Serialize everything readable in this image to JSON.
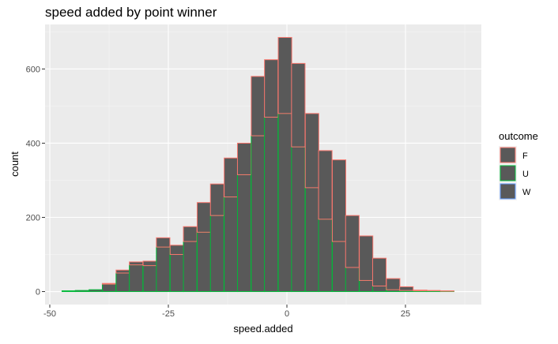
{
  "chart_data": {
    "type": "bar",
    "subtype": "stacked-histogram",
    "title": "speed added by point winner",
    "xlabel": "speed.added",
    "ylabel": "count",
    "xlim": [
      -51,
      41
    ],
    "ylim": [
      -35,
      720
    ],
    "x_ticks": [
      -50,
      -25,
      0,
      25
    ],
    "x_tick_labels": [
      "-50",
      "-25",
      "0",
      "25"
    ],
    "y_ticks": [
      0,
      200,
      400,
      600
    ],
    "y_tick_labels": [
      "0",
      "200",
      "400",
      "600"
    ],
    "grid": true,
    "legend": {
      "title": "outcome",
      "placement": "right"
    },
    "bin_width": 2.85,
    "bin_centers": [
      -46.0,
      -43.2,
      -40.3,
      -37.5,
      -34.6,
      -31.8,
      -28.9,
      -26.1,
      -23.2,
      -20.4,
      -17.5,
      -14.7,
      -11.8,
      -9.0,
      -6.1,
      -3.3,
      -0.4,
      2.4,
      5.3,
      8.1,
      11.0,
      13.8,
      16.7,
      19.5,
      22.4,
      25.2,
      28.1,
      30.9,
      33.8,
      36.6
    ],
    "series": [
      {
        "name": "W",
        "color": "#619cff",
        "values": [
          0,
          0,
          0,
          0,
          0,
          0,
          0,
          0,
          0,
          0,
          0,
          0,
          0,
          0,
          0,
          0,
          0,
          0,
          0,
          0,
          0,
          0,
          0,
          0,
          0,
          0,
          0,
          0,
          0,
          0
        ]
      },
      {
        "name": "U",
        "color": "#00ba38",
        "values": [
          2,
          3,
          5,
          20,
          50,
          72,
          70,
          120,
          100,
          135,
          160,
          205,
          255,
          315,
          420,
          470,
          480,
          390,
          280,
          195,
          135,
          65,
          30,
          15,
          5,
          3,
          2,
          2,
          1,
          0
        ]
      },
      {
        "name": "F",
        "color": "#f8766d",
        "values": [
          0,
          0,
          0,
          2,
          8,
          8,
          12,
          25,
          25,
          40,
          80,
          85,
          105,
          85,
          160,
          155,
          205,
          225,
          200,
          185,
          220,
          140,
          120,
          75,
          30,
          10,
          2,
          1,
          1,
          0
        ]
      }
    ]
  }
}
